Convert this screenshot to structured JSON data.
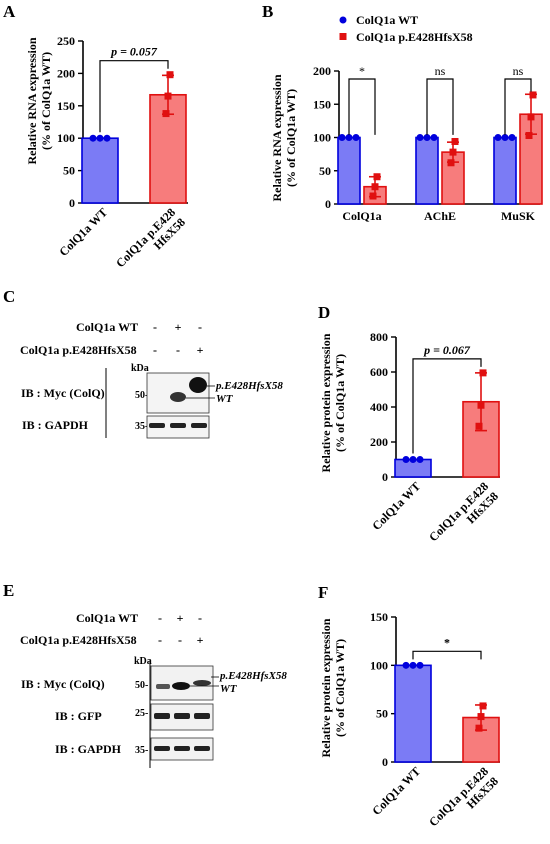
{
  "colors": {
    "wt_fill": "#7b7bf5",
    "wt_edge": "#0000dd",
    "mut_fill": "#f77c7c",
    "mut_edge": "#e01010"
  },
  "panels": {
    "A": {
      "letter": "A",
      "ylabel": [
        "Relative RNA expression",
        "(% of ColQ1a WT)"
      ]
    },
    "B": {
      "letter": "B",
      "ylabel": [
        "Relative RNA expression",
        "(% of ColQ1a WT)"
      ],
      "legend": [
        "ColQ1a WT",
        "ColQ1a p.E428HfsX58"
      ]
    },
    "C": {
      "letter": "C"
    },
    "D": {
      "letter": "D",
      "ylabel": [
        "Relative protein expression",
        "(% of ColQ1a WT)"
      ]
    },
    "E": {
      "letter": "E"
    },
    "F": {
      "letter": "F",
      "ylabel": [
        "Relative protein expression",
        "(% of ColQ1a WT)"
      ]
    }
  },
  "blots": {
    "C": {
      "row_labels": [
        "ColQ1a WT",
        "ColQ1a p.E428HfsX58"
      ],
      "lane_marks": [
        [
          "-",
          "+",
          "-"
        ],
        [
          "-",
          "-",
          "+"
        ]
      ],
      "kda": "kDa",
      "strips": [
        {
          "label": "IB : Myc (ColQ)",
          "marker": "50-"
        },
        {
          "label": "IB : GAPDH",
          "marker": "35-"
        }
      ],
      "band_labels": [
        "p.E428HfsX58",
        "WT"
      ]
    },
    "E": {
      "row_labels": [
        "ColQ1a WT",
        "ColQ1a p.E428HfsX58"
      ],
      "lane_marks": [
        [
          "-",
          "+",
          "-"
        ],
        [
          "-",
          "-",
          "+"
        ]
      ],
      "kda": "kDa",
      "strips": [
        {
          "label": "IB : Myc (ColQ)",
          "marker": "50-"
        },
        {
          "label": "IB : GFP",
          "marker": "25-"
        },
        {
          "label": "IB : GAPDH",
          "marker": "35-"
        }
      ],
      "band_labels": [
        "p.E428HfsX58",
        "WT"
      ]
    }
  },
  "chart_data": [
    {
      "id": "A",
      "type": "bar",
      "categories": [
        "ColQ1a WT",
        "ColQ1a p.E428 HfsX58"
      ],
      "series": [
        {
          "values": [
            100,
            167
          ],
          "errors": [
            0,
            30
          ],
          "points": [
            [
              100,
              100,
              100
            ],
            [
              138,
              165,
              198
            ]
          ]
        }
      ],
      "ylim": [
        0,
        250
      ],
      "yticks": [
        0,
        50,
        100,
        150,
        200,
        250
      ],
      "significance": [
        {
          "from": 0,
          "to": 1,
          "label": "p = 0.057"
        }
      ]
    },
    {
      "id": "B",
      "type": "bar",
      "categories": [
        "ColQ1a",
        "AChE",
        "MuSK"
      ],
      "series": [
        {
          "name": "ColQ1a WT",
          "values": [
            100,
            100,
            100
          ],
          "errors": [
            0,
            0,
            0
          ],
          "points": [
            [
              100,
              100,
              100
            ],
            [
              100,
              100,
              100
            ],
            [
              100,
              100,
              100
            ]
          ]
        },
        {
          "name": "ColQ1a p.E428HfsX58",
          "values": [
            26,
            78,
            135
          ],
          "errors": [
            15,
            15,
            30
          ],
          "points": [
            [
              12,
              26,
              41
            ],
            [
              62,
              78,
              94
            ],
            [
              103,
              131,
              164
            ]
          ]
        }
      ],
      "ylim": [
        0,
        200
      ],
      "yticks": [
        0,
        50,
        100,
        150,
        200
      ],
      "significance": [
        {
          "group": 0,
          "label": "*"
        },
        {
          "group": 1,
          "label": "ns"
        },
        {
          "group": 2,
          "label": "ns"
        }
      ]
    },
    {
      "id": "D",
      "type": "bar",
      "categories": [
        "ColQ1a WT",
        "ColQ1a p.E428 HfsX58"
      ],
      "series": [
        {
          "values": [
            100,
            430
          ],
          "errors": [
            0,
            165
          ],
          "points": [
            [
              100,
              100,
              100
            ],
            [
              290,
              410,
              595
            ]
          ]
        }
      ],
      "ylim": [
        0,
        800
      ],
      "yticks": [
        0,
        200,
        400,
        600,
        800
      ],
      "significance": [
        {
          "from": 0,
          "to": 1,
          "label": "p = 0.067"
        }
      ]
    },
    {
      "id": "F",
      "type": "bar",
      "categories": [
        "ColQ1a WT",
        "ColQ1a p.E428 HfsX58"
      ],
      "series": [
        {
          "values": [
            100,
            46
          ],
          "errors": [
            0,
            13
          ],
          "points": [
            [
              100,
              100,
              100
            ],
            [
              35,
              47,
              58
            ]
          ]
        }
      ],
      "ylim": [
        0,
        150
      ],
      "yticks": [
        0,
        50,
        100,
        150
      ],
      "significance": [
        {
          "from": 0,
          "to": 1,
          "label": "*"
        }
      ]
    }
  ]
}
